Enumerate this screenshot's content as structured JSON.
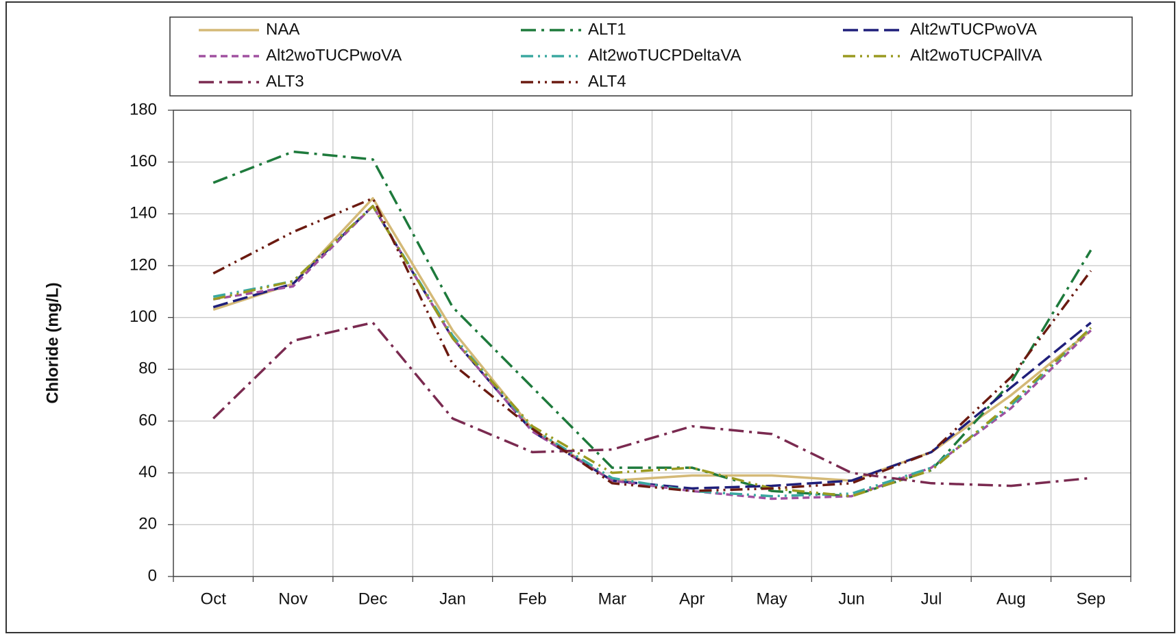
{
  "chart_data": {
    "type": "line",
    "y_label": "Chloride (mg/L)",
    "categories": [
      "Oct",
      "Nov",
      "Dec",
      "Jan",
      "Feb",
      "Mar",
      "Apr",
      "May",
      "Jun",
      "Jul",
      "Aug",
      "Sep"
    ],
    "series": [
      {
        "name": "NAA",
        "color": "#d4b977",
        "dash": "solid",
        "values": [
          103,
          113,
          146,
          95,
          57,
          37,
          39,
          39,
          37,
          48,
          70,
          95
        ]
      },
      {
        "name": "ALT1",
        "color": "#1e7a3c",
        "dash": "dash-dot",
        "values": [
          152,
          164,
          161,
          104,
          73,
          42,
          42,
          33,
          31,
          41,
          75,
          126
        ]
      },
      {
        "name": "Alt2wTUCPwoVA",
        "color": "#1f1f7a",
        "dash": "long-dash",
        "values": [
          104,
          113,
          143,
          92,
          56,
          37,
          34,
          35,
          37,
          48,
          73,
          98
        ]
      },
      {
        "name": "Alt2woTUCPwoVA",
        "color": "#a050a0",
        "dash": "dash",
        "values": [
          107,
          112,
          143,
          92,
          56,
          37,
          33,
          30,
          31,
          42,
          65,
          95
        ]
      },
      {
        "name": "Alt2woTUCPDeltaVA",
        "color": "#3aa8a0",
        "dash": "dash-dot-dot",
        "values": [
          108,
          114,
          143,
          93,
          57,
          38,
          33,
          31,
          32,
          42,
          66,
          96
        ]
      },
      {
        "name": "Alt2woTUCPAllVA",
        "color": "#9a9a20",
        "dash": "dash-dot-dot",
        "values": [
          107,
          114,
          143,
          92,
          58,
          40,
          42,
          34,
          31,
          41,
          67,
          96
        ]
      },
      {
        "name": "ALT3",
        "color": "#7a2a50",
        "dash": "dash-dot",
        "values": [
          61,
          91,
          98,
          61,
          48,
          49,
          58,
          55,
          40,
          36,
          35,
          38
        ]
      },
      {
        "name": "ALT4",
        "color": "#6b1a10",
        "dash": "dash-dot-dot",
        "values": [
          117,
          133,
          146,
          82,
          57,
          36,
          33,
          34,
          36,
          48,
          77,
          118
        ]
      }
    ],
    "ylim": [
      0,
      180
    ],
    "yticks": [
      0,
      20,
      40,
      60,
      80,
      100,
      120,
      140,
      160,
      180
    ],
    "grid": true,
    "legend": "top"
  }
}
